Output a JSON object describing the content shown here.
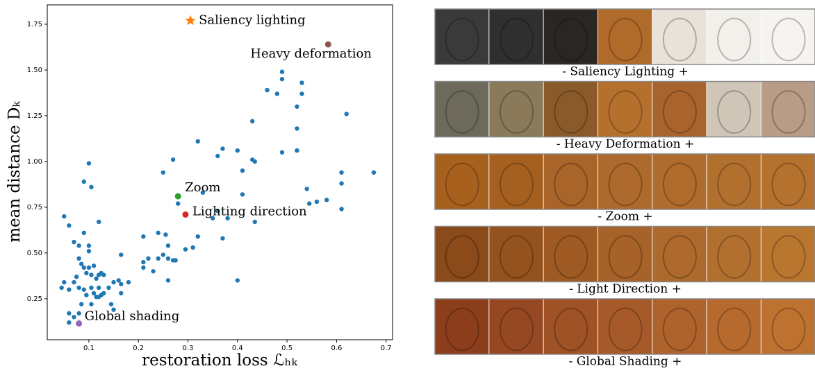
{
  "chart_data": {
    "type": "scatter",
    "x_label": "restoration loss ℒₕₖ",
    "y_label": "mean distance Dₖ",
    "xlim": [
      0.016,
      0.713
    ],
    "ylim": [
      0.026,
      1.856
    ],
    "xticks": [
      0.1,
      0.2,
      0.3,
      0.4,
      0.5,
      0.6,
      0.7
    ],
    "yticks": [
      0.25,
      {
        "value": 0.5,
        "label": "0.50"
      },
      0.75,
      {
        "value": 1.0,
        "label": "1.00"
      },
      1.25,
      {
        "value": 1.5,
        "label": "1.50"
      },
      1.75
    ],
    "color": "#1f77b4",
    "x": [
      0.05,
      0.06,
      0.07,
      0.08,
      0.09,
      0.09,
      0.1,
      0.105,
      0.12,
      0.1,
      0.1,
      0.08,
      0.085,
      0.09,
      0.1,
      0.11,
      0.095,
      0.105,
      0.115,
      0.12,
      0.125,
      0.13,
      0.045,
      0.05,
      0.06,
      0.07,
      0.075,
      0.08,
      0.09,
      0.095,
      0.105,
      0.11,
      0.115,
      0.12,
      0.125,
      0.13,
      0.14,
      0.15,
      0.16,
      0.165,
      0.18,
      0.06,
      0.07,
      0.06,
      0.08,
      0.085,
      0.105,
      0.12,
      0.145,
      0.15,
      0.165,
      0.165,
      0.21,
      0.21,
      0.21,
      0.22,
      0.23,
      0.24,
      0.24,
      0.25,
      0.255,
      0.26,
      0.26,
      0.27,
      0.275,
      0.26,
      0.25,
      0.27,
      0.28,
      0.295,
      0.31,
      0.32,
      0.32,
      0.36,
      0.37,
      0.37,
      0.4,
      0.41,
      0.41,
      0.4,
      0.43,
      0.435,
      0.43,
      0.435,
      0.46,
      0.48,
      0.49,
      0.49,
      0.52,
      0.52,
      0.53,
      0.53,
      0.49,
      0.52,
      0.54,
      0.545,
      0.56,
      0.58,
      0.61,
      0.61,
      0.61,
      0.62,
      0.675,
      0.38,
      0.35,
      0.36,
      0.33
    ],
    "y": [
      0.7,
      0.65,
      0.56,
      0.54,
      0.61,
      0.89,
      0.99,
      0.86,
      0.67,
      0.54,
      0.51,
      0.47,
      0.44,
      0.42,
      0.42,
      0.43,
      0.39,
      0.38,
      0.36,
      0.38,
      0.39,
      0.38,
      0.31,
      0.34,
      0.3,
      0.34,
      0.37,
      0.31,
      0.3,
      0.27,
      0.31,
      0.28,
      0.26,
      0.31,
      0.27,
      0.28,
      0.31,
      0.34,
      0.35,
      0.33,
      0.34,
      0.17,
      0.15,
      0.12,
      0.17,
      0.22,
      0.22,
      0.26,
      0.22,
      0.19,
      0.28,
      0.49,
      0.59,
      0.45,
      0.42,
      0.47,
      0.4,
      0.47,
      0.61,
      0.49,
      0.6,
      0.54,
      0.47,
      0.46,
      0.46,
      0.35,
      0.94,
      1.01,
      0.77,
      0.52,
      0.53,
      1.11,
      0.59,
      1.03,
      1.07,
      0.58,
      1.06,
      0.95,
      0.82,
      0.35,
      1.01,
      1.0,
      1.22,
      0.67,
      1.39,
      1.37,
      1.49,
      1.45,
      1.3,
      1.18,
      1.37,
      1.43,
      1.05,
      1.06,
      0.85,
      0.77,
      0.78,
      0.79,
      0.94,
      0.88,
      0.74,
      1.26,
      0.94,
      0.69,
      0.69,
      0.73,
      0.83
    ],
    "highlights": [
      {
        "label": "Saliency lighting",
        "x": 0.305,
        "y": 1.77,
        "color": "#ff7f0e",
        "marker": "star"
      },
      {
        "label": "Heavy deformation",
        "x": 0.583,
        "y": 1.64,
        "color": "#8c564b",
        "marker": "circle"
      },
      {
        "label": "Zoom",
        "x": 0.28,
        "y": 0.81,
        "color": "#2ca02c",
        "marker": "circle"
      },
      {
        "label": "Lighting direction",
        "x": 0.295,
        "y": 0.71,
        "color": "#d62728",
        "marker": "circle"
      },
      {
        "label": "Global shading",
        "x": 0.08,
        "y": 0.115,
        "color": "#9467bd",
        "marker": "circle"
      }
    ]
  },
  "image_strips": {
    "captions": [
      "- Saliency Lighting +",
      "- Heavy Deformation +",
      "- Zoom +",
      "- Light Direction +",
      "- Global Shading +"
    ]
  }
}
